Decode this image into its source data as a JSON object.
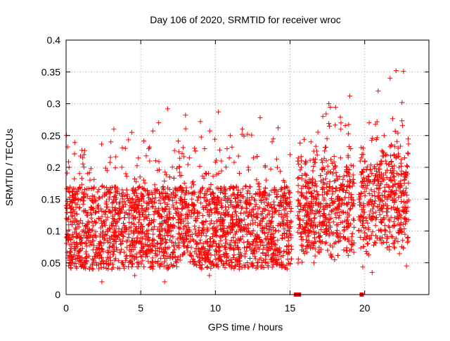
{
  "chart_data": {
    "type": "scatter",
    "title": "Day 106 of 2020, SRMTID for receiver wroc",
    "xlabel": "GPS time / hours",
    "ylabel": "SRMTID / TECUs",
    "xlim": [
      0,
      24.3
    ],
    "ylim": [
      0,
      0.4
    ],
    "x_ticks": [
      0,
      5,
      10,
      15,
      20
    ],
    "x_tick_labels": [
      "0",
      "5",
      "10",
      "15",
      "20"
    ],
    "y_ticks": [
      0,
      0.05,
      0.1,
      0.15,
      0.2,
      0.25,
      0.3,
      0.35,
      0.4
    ],
    "y_tick_labels": [
      "0",
      "0.05",
      "0.1",
      "0.15",
      "0.2",
      "0.25",
      "0.3",
      "0.35",
      "0.4"
    ],
    "grid": true,
    "marker": "+",
    "series_color": "#ff0000",
    "data_gaps_hours": [
      [
        15.1,
        15.5
      ],
      [
        19.3,
        19.6
      ]
    ],
    "zero_markers_hours": [
      15.4,
      15.5,
      15.6,
      19.8
    ],
    "points": [
      [
        0.1,
        0.232
      ],
      [
        0.2,
        0.2
      ],
      [
        0.3,
        0.05
      ],
      [
        0.4,
        0.11
      ],
      [
        0.6,
        0.07
      ],
      [
        0.8,
        0.15
      ],
      [
        1.0,
        0.09
      ],
      [
        1.2,
        0.22
      ],
      [
        1.4,
        0.06
      ],
      [
        1.6,
        0.18
      ],
      [
        1.8,
        0.04
      ],
      [
        2.0,
        0.13
      ],
      [
        2.2,
        0.08
      ],
      [
        2.4,
        0.02
      ],
      [
        2.6,
        0.16
      ],
      [
        2.8,
        0.1
      ],
      [
        3.0,
        0.24
      ],
      [
        3.2,
        0.26
      ],
      [
        3.4,
        0.07
      ],
      [
        3.6,
        0.12
      ],
      [
        3.8,
        0.05
      ],
      [
        4.0,
        0.19
      ],
      [
        4.2,
        0.09
      ],
      [
        4.4,
        0.255
      ],
      [
        4.6,
        0.03
      ],
      [
        4.8,
        0.14
      ],
      [
        5.0,
        0.06
      ],
      [
        5.2,
        0.18
      ],
      [
        5.4,
        0.1
      ],
      [
        5.6,
        0.21
      ],
      [
        5.8,
        0.04
      ],
      [
        6.0,
        0.13
      ],
      [
        6.2,
        0.27
      ],
      [
        6.4,
        0.08
      ],
      [
        6.6,
        0.02
      ],
      [
        6.8,
        0.292
      ],
      [
        7.0,
        0.11
      ],
      [
        7.2,
        0.16
      ],
      [
        7.4,
        0.05
      ],
      [
        7.6,
        0.2
      ],
      [
        7.8,
        0.09
      ],
      [
        8.0,
        0.282
      ],
      [
        8.2,
        0.14
      ],
      [
        8.4,
        0.06
      ],
      [
        8.6,
        0.23
      ],
      [
        8.8,
        0.12
      ],
      [
        9.0,
        0.272
      ],
      [
        9.2,
        0.075
      ],
      [
        9.4,
        0.19
      ],
      [
        9.6,
        0.03
      ],
      [
        9.8,
        0.15
      ],
      [
        10.0,
        0.1
      ],
      [
        10.2,
        0.287
      ],
      [
        10.4,
        0.21
      ],
      [
        10.6,
        0.06
      ],
      [
        10.8,
        0.13
      ],
      [
        11.0,
        0.25
      ],
      [
        11.2,
        0.09
      ],
      [
        11.4,
        0.17
      ],
      [
        11.6,
        0.04
      ],
      [
        11.8,
        0.26
      ],
      [
        12.0,
        0.11
      ],
      [
        12.2,
        0.2
      ],
      [
        12.4,
        0.07
      ],
      [
        12.6,
        0.15
      ],
      [
        12.8,
        0.05
      ],
      [
        13.0,
        0.278
      ],
      [
        13.2,
        0.12
      ],
      [
        13.4,
        0.18
      ],
      [
        13.6,
        0.08
      ],
      [
        13.8,
        0.24
      ],
      [
        14.0,
        0.1
      ],
      [
        14.2,
        0.262
      ],
      [
        14.4,
        0.06
      ],
      [
        14.6,
        0.16
      ],
      [
        14.8,
        0.04
      ],
      [
        15.0,
        0.22
      ],
      [
        15.6,
        0.13
      ],
      [
        15.8,
        0.07
      ],
      [
        16.0,
        0.19
      ],
      [
        16.2,
        0.1
      ],
      [
        16.4,
        0.24
      ],
      [
        16.6,
        0.05
      ],
      [
        16.8,
        0.15
      ],
      [
        17.0,
        0.09
      ],
      [
        17.2,
        0.28
      ],
      [
        17.4,
        0.12
      ],
      [
        17.6,
        0.3
      ],
      [
        17.8,
        0.06
      ],
      [
        18.0,
        0.2
      ],
      [
        18.2,
        0.11
      ],
      [
        18.4,
        0.26
      ],
      [
        18.6,
        0.07
      ],
      [
        18.8,
        0.17
      ],
      [
        19.0,
        0.312
      ],
      [
        19.2,
        0.14
      ],
      [
        19.7,
        0.09
      ],
      [
        19.9,
        0.23
      ],
      [
        20.1,
        0.12
      ],
      [
        20.3,
        0.27
      ],
      [
        20.5,
        0.035
      ],
      [
        20.7,
        0.18
      ],
      [
        20.9,
        0.32
      ],
      [
        21.1,
        0.1
      ],
      [
        21.3,
        0.25
      ],
      [
        21.5,
        0.15
      ],
      [
        21.7,
        0.34
      ],
      [
        21.9,
        0.08
      ],
      [
        22.1,
        0.352
      ],
      [
        22.3,
        0.2
      ],
      [
        22.5,
        0.302
      ],
      [
        22.6,
        0.351
      ],
      [
        22.7,
        0.12
      ],
      [
        22.8,
        0.045
      ],
      [
        22.9,
        0.09
      ]
    ]
  }
}
